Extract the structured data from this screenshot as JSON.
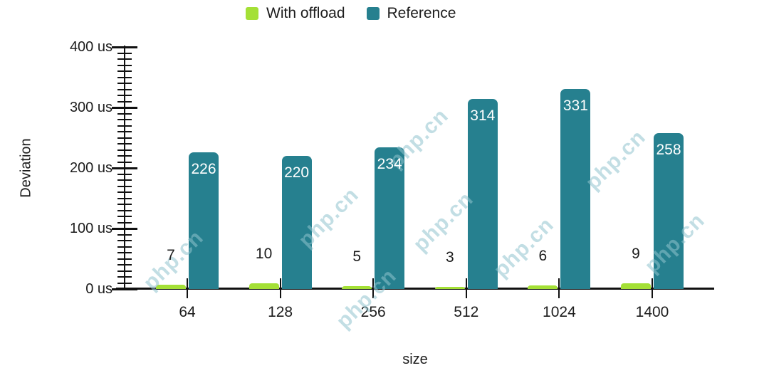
{
  "chart_data": {
    "type": "bar",
    "xlabel": "size",
    "ylabel": "Deviation",
    "categories": [
      "64",
      "128",
      "256",
      "512",
      "1024",
      "1400"
    ],
    "series": [
      {
        "name": "With offload",
        "color": "#a4e036",
        "values": [
          7,
          10,
          5,
          3,
          6,
          9
        ]
      },
      {
        "name": "Reference",
        "color": "#26808f",
        "values": [
          226,
          220,
          234,
          314,
          331,
          258
        ]
      }
    ],
    "y_axis": {
      "min": 0,
      "max": 400,
      "major_step": 100,
      "minor_step": 10,
      "unit": "us",
      "tick_labels": [
        "0 us",
        "100 us",
        "200 us",
        "300 us",
        "400 us"
      ]
    },
    "legend_position": "top",
    "grid": false,
    "value_labels": true
  },
  "watermark": {
    "text": "php.cn"
  },
  "colors": {
    "with_offload": "#a4e036",
    "reference": "#26808f",
    "axis": "#111111",
    "text": "#1d1d1d",
    "bar_value_light": "#ffffff",
    "watermark": "#90c3cd"
  }
}
